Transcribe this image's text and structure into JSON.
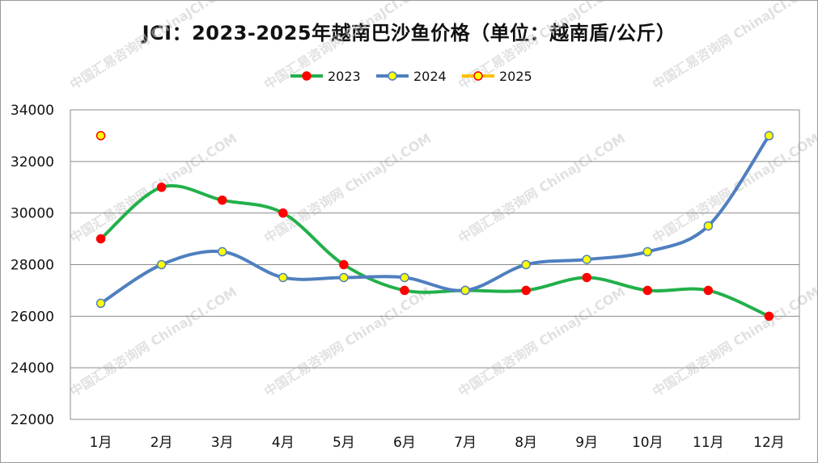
{
  "chart_data": {
    "type": "line",
    "title": "JCI：2023-2025年越南巴沙鱼价格（单位：越南盾/公斤）",
    "categories": [
      "1月",
      "2月",
      "3月",
      "4月",
      "5月",
      "6月",
      "7月",
      "8月",
      "9月",
      "10月",
      "11月",
      "12月"
    ],
    "ylim": [
      22000,
      34000
    ],
    "yticks": [
      22000,
      24000,
      26000,
      28000,
      30000,
      32000,
      34000
    ],
    "grid": true,
    "legend_position": "top",
    "series": [
      {
        "name": "2023",
        "color": "#22b04a",
        "marker_fill": "#ff0000",
        "marker_stroke": "#ff0000",
        "values": [
          29000,
          31000,
          30500,
          30000,
          28000,
          27000,
          27000,
          27000,
          27500,
          27000,
          27000,
          26000
        ]
      },
      {
        "name": "2024",
        "color": "#4f7fbf",
        "marker_fill": "#ffff00",
        "marker_stroke": "#4f7fbf",
        "values": [
          26500,
          28000,
          28500,
          27500,
          27500,
          27500,
          27000,
          28000,
          28200,
          28500,
          29500,
          33000
        ]
      },
      {
        "name": "2025",
        "color": "#ffc000",
        "marker_fill": "#ffff00",
        "marker_stroke": "#ff0000",
        "values": [
          33000,
          null,
          null,
          null,
          null,
          null,
          null,
          null,
          null,
          null,
          null,
          null
        ]
      }
    ],
    "watermark": "中国汇易咨询网 ChinaJCI.COM"
  }
}
